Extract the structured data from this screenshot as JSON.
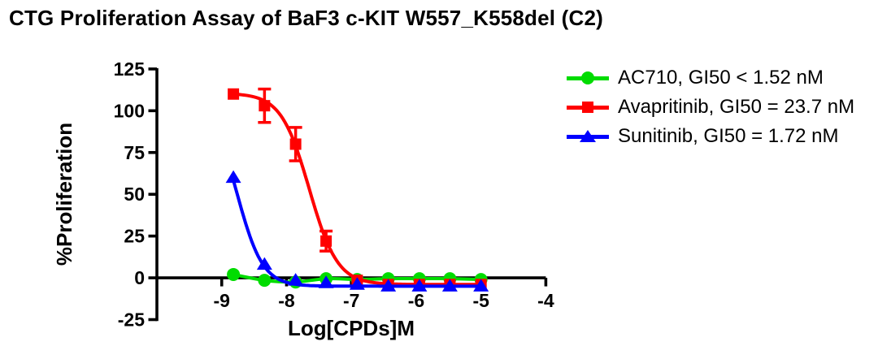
{
  "title": "CTG Proliferation Assay of BaF3 c-KIT W557_K558del (C2)",
  "chart_data": {
    "type": "line",
    "title": "CTG Proliferation Assay of BaF3 c-KIT W557_K558del (C2)",
    "xlabel": "Log[CPDs]M",
    "ylabel": "%Proliferation",
    "xlim": [
      -10,
      -4
    ],
    "ylim": [
      -25,
      125
    ],
    "x_ticks": [
      -9,
      -8,
      -7,
      -6,
      -5,
      -4
    ],
    "y_ticks": [
      125,
      100,
      75,
      50,
      25,
      0,
      -25
    ],
    "grid": false,
    "legend_position": "right",
    "x": [
      -8.82,
      -8.34,
      -7.86,
      -7.39,
      -6.91,
      -6.43,
      -5.95,
      -5.48,
      -5.0
    ],
    "series": [
      {
        "name": "AC710",
        "legend": "AC710, GI50 < 1.52 nM",
        "color": "#00DC00",
        "marker": "circle",
        "values": [
          2,
          -1.5,
          -2.5,
          -0.5,
          -1,
          -0.5,
          -0.5,
          -0.5,
          -1
        ],
        "err": [
          0,
          0,
          0,
          0,
          0,
          0,
          0,
          0,
          0
        ],
        "fit": {
          "type": "spline"
        }
      },
      {
        "name": "Avapritinib",
        "legend": "Avapritinib, GI50 = 23.7 nM",
        "color": "#FF0000",
        "marker": "square",
        "values": [
          110,
          103,
          80,
          22,
          -1.5,
          -4,
          -4,
          -4,
          -4
        ],
        "err": [
          0,
          10,
          10,
          6,
          0,
          0,
          0,
          0,
          0
        ],
        "fit": {
          "type": "4PL",
          "top": 110.5,
          "bottom": -4,
          "logIC50": -7.65,
          "hill": 2.0
        }
      },
      {
        "name": "Sunitinib",
        "legend": "Sunitinib, GI50 = 1.72 nM",
        "color": "#0000FF",
        "marker": "triangle",
        "values": [
          60,
          8,
          -1.5,
          -3,
          -4,
          -5,
          -5,
          -5,
          -5
        ],
        "err": [
          0,
          0,
          0,
          0,
          0,
          0,
          0,
          0,
          0
        ],
        "fit": {
          "type": "4PL",
          "top": 105,
          "bottom": -5,
          "logIC50": -8.76,
          "hill": 2.2
        }
      }
    ]
  }
}
